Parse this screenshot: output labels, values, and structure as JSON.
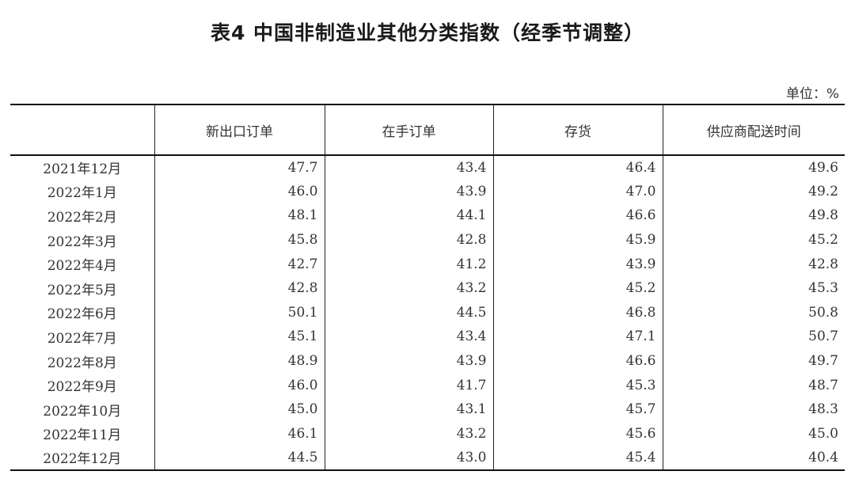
{
  "title": "表4 中国非制造业其他分类指数（经季节调整）",
  "unit_label": "单位：%",
  "columns": [
    "",
    "新出口订单",
    "在手订单",
    "存货",
    "供应商配送时间"
  ],
  "rows": [
    {
      "period": "2021年12月",
      "values": [
        "47.7",
        "43.4",
        "46.4",
        "49.6"
      ]
    },
    {
      "period": "2022年1月",
      "values": [
        "46.0",
        "43.9",
        "47.0",
        "49.2"
      ]
    },
    {
      "period": "2022年2月",
      "values": [
        "48.1",
        "44.1",
        "46.6",
        "49.8"
      ]
    },
    {
      "period": "2022年3月",
      "values": [
        "45.8",
        "42.8",
        "45.9",
        "45.2"
      ]
    },
    {
      "period": "2022年4月",
      "values": [
        "42.7",
        "41.2",
        "43.9",
        "42.8"
      ]
    },
    {
      "period": "2022年5月",
      "values": [
        "42.8",
        "43.2",
        "45.2",
        "45.3"
      ]
    },
    {
      "period": "2022年6月",
      "values": [
        "50.1",
        "44.5",
        "46.8",
        "50.8"
      ]
    },
    {
      "period": "2022年7月",
      "values": [
        "45.1",
        "43.4",
        "47.1",
        "50.7"
      ]
    },
    {
      "period": "2022年8月",
      "values": [
        "48.9",
        "43.9",
        "46.6",
        "49.7"
      ]
    },
    {
      "period": "2022年9月",
      "values": [
        "46.0",
        "41.7",
        "45.3",
        "48.7"
      ]
    },
    {
      "period": "2022年10月",
      "values": [
        "45.0",
        "43.1",
        "45.7",
        "48.3"
      ]
    },
    {
      "period": "2022年11月",
      "values": [
        "46.1",
        "43.2",
        "45.6",
        "45.0"
      ]
    },
    {
      "period": "2022年12月",
      "values": [
        "44.5",
        "43.0",
        "45.4",
        "40.4"
      ]
    }
  ]
}
